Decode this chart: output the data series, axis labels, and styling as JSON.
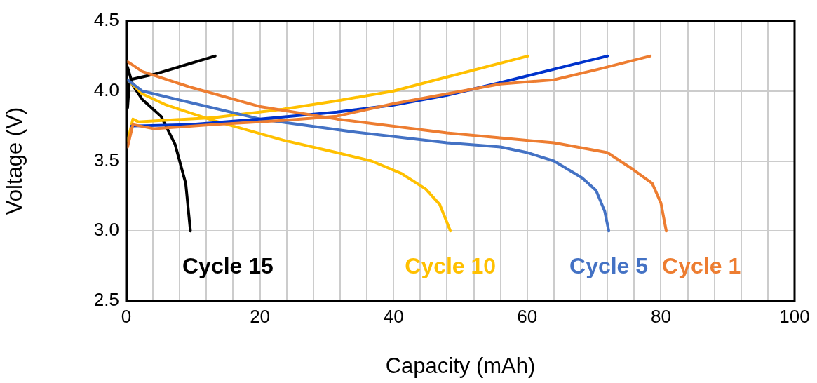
{
  "chart_data": {
    "type": "line",
    "xlabel": "Capacity (mAh)",
    "ylabel": "Voltage (V)",
    "xlim": [
      0,
      100
    ],
    "xticks": [
      0,
      {
        "value": 4,
        "label": null
      },
      {
        "value": 8,
        "label": null
      },
      {
        "value": 12,
        "label": null
      },
      {
        "value": 16,
        "label": null
      },
      20,
      {
        "value": 24,
        "label": null
      },
      {
        "value": 28,
        "label": null
      },
      {
        "value": 32,
        "label": null
      },
      {
        "value": 36,
        "label": null
      },
      40,
      {
        "value": 44,
        "label": null
      },
      {
        "value": 48,
        "label": null
      },
      {
        "value": 52,
        "label": null
      },
      {
        "value": 56,
        "label": null
      },
      60,
      {
        "value": 64,
        "label": null
      },
      {
        "value": 68,
        "label": null
      },
      {
        "value": 72,
        "label": null
      },
      {
        "value": 76,
        "label": null
      },
      80,
      {
        "value": 84,
        "label": null
      },
      {
        "value": 88,
        "label": null
      },
      {
        "value": 92,
        "label": null
      },
      {
        "value": 96,
        "label": null
      },
      100
    ],
    "ylim": [
      2.5,
      4.5
    ],
    "yticks": [
      {
        "value": 2.5,
        "label": "2.5"
      },
      {
        "value": 3,
        "label": "3.0"
      },
      {
        "value": 3.5,
        "label": "3.5"
      },
      {
        "value": 4,
        "label": "4.0"
      },
      {
        "value": 4.5,
        "label": "4.5"
      }
    ],
    "grid": true,
    "legend": false,
    "marker": "none",
    "line_style": "solid",
    "series": [
      {
        "color": "#ed7d31",
        "x": [
          0.2,
          1,
          4.2,
          13,
          23.4,
          31.5,
          40,
          48,
          56,
          64,
          71,
          78.4
        ],
        "values": [
          3.6,
          3.76,
          3.73,
          3.76,
          3.79,
          3.82,
          3.91,
          3.98,
          4.05,
          4.08,
          4.16,
          4.25
        ]
      },
      {
        "name": "Cycle 1",
        "color": "#ed7d31",
        "x": [
          0.2,
          2.4,
          9.4,
          19.9,
          31.5,
          48,
          64,
          72,
          75.5,
          78.7,
          80,
          80.8
        ],
        "values": [
          4.21,
          4.14,
          4.03,
          3.89,
          3.8,
          3.7,
          3.63,
          3.56,
          3.45,
          3.34,
          3.2,
          3.0
        ]
      },
      {
        "color": "#0033cc",
        "x": [
          0.8,
          9.4,
          20,
          31.5,
          40,
          48,
          56,
          66,
          72
        ],
        "values": [
          3.75,
          3.76,
          3.8,
          3.85,
          3.9,
          3.97,
          4.06,
          4.18,
          4.25
        ]
      },
      {
        "name": "Cycle 5",
        "color": "#4472c4",
        "x": [
          0.2,
          2.4,
          9.4,
          20,
          33.6,
          48,
          56,
          60,
          64,
          68.2,
          70.3,
          71.6,
          72.2
        ],
        "values": [
          4.08,
          4.0,
          3.92,
          3.8,
          3.71,
          3.63,
          3.6,
          3.56,
          3.5,
          3.38,
          3.29,
          3.14,
          3.0
        ]
      },
      {
        "color": "#ffc000",
        "x": [
          0.2,
          1,
          1.8,
          13,
          23.4,
          31.5,
          40,
          48,
          60.1
        ],
        "values": [
          3.64,
          3.8,
          3.78,
          3.81,
          3.87,
          3.93,
          4.0,
          4.1,
          4.25
        ]
      },
      {
        "name": "Cycle 10",
        "color": "#ffc000",
        "x": [
          0.2,
          2.4,
          6,
          13,
          23.4,
          31.5,
          36.7,
          41.2,
          44.8,
          46.9,
          48.5
        ],
        "values": [
          4.08,
          3.98,
          3.9,
          3.79,
          3.65,
          3.56,
          3.5,
          3.41,
          3.3,
          3.19,
          3.0
        ]
      },
      {
        "color": "#000000",
        "x": [
          0.2,
          0.5,
          4.2,
          13.3
        ],
        "values": [
          3.88,
          4.08,
          4.12,
          4.25
        ]
      },
      {
        "name": "Cycle 15",
        "color": "#000000",
        "x": [
          0.2,
          1,
          2.4,
          5.2,
          7.3,
          8.9,
          9.6
        ],
        "values": [
          4.17,
          4.04,
          3.94,
          3.82,
          3.62,
          3.34,
          3.0
        ]
      }
    ]
  }
}
